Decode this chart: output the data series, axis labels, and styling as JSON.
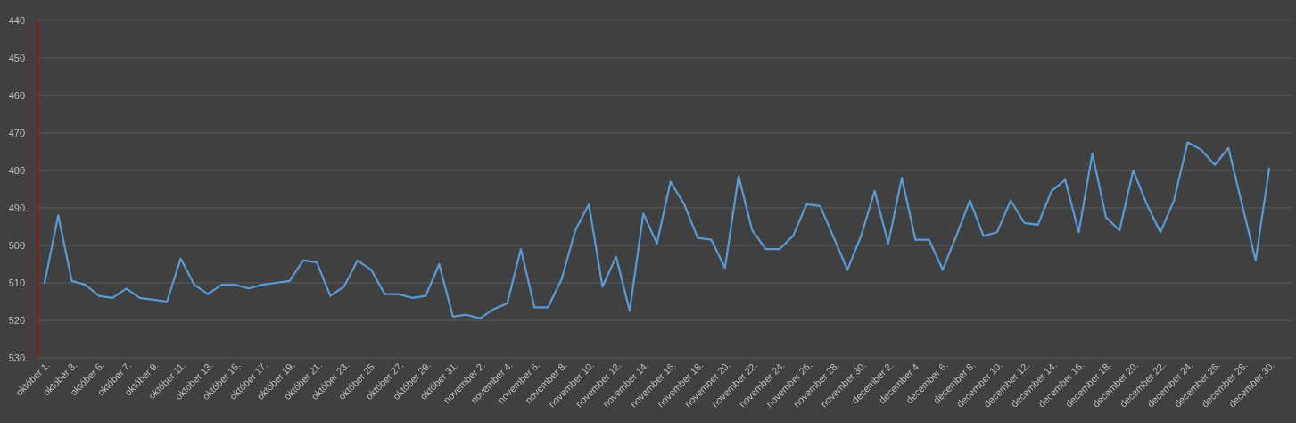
{
  "chart_data": {
    "type": "line",
    "categories": [
      "október 1.",
      null,
      "október 3.",
      null,
      "október 5.",
      null,
      "október 7.",
      null,
      "október 9.",
      null,
      "október 11.",
      null,
      "október 13.",
      null,
      "október 15.",
      null,
      "október 17.",
      null,
      "október 19.",
      null,
      "október 21.",
      null,
      "október 23.",
      null,
      "október 25.",
      null,
      "október 27.",
      null,
      "október 29.",
      null,
      "október 31.",
      null,
      "november 2.",
      null,
      "november 4.",
      null,
      "november 6.",
      null,
      "november 8.",
      null,
      "november 10.",
      null,
      "november 12.",
      null,
      "november 14.",
      null,
      "november 16.",
      null,
      "november 18.",
      null,
      "november 20.",
      null,
      "november 22.",
      null,
      "november 24.",
      null,
      "november 26.",
      null,
      "november 28.",
      null,
      "november 30.",
      null,
      "december 2.",
      null,
      "december 4.",
      null,
      "december 6.",
      null,
      "december 8.",
      null,
      "december 10.",
      null,
      "december 12.",
      null,
      "december 14.",
      null,
      "december 16.",
      null,
      "december 18.",
      null,
      "december 20.",
      null,
      "december 22.",
      null,
      "december 24.",
      null,
      "december 26.",
      null,
      "december 28.",
      null,
      "december 30."
    ],
    "series": [
      {
        "color": "#5b9bd5",
        "values": [
          510,
          492,
          509.5,
          510.5,
          513.5,
          514,
          511.5,
          514,
          514.5,
          515,
          503.5,
          510.5,
          513,
          510.5,
          510.5,
          511.5,
          510.5,
          510,
          509.5,
          504,
          504.5,
          513.5,
          511,
          504,
          506.5,
          513,
          513,
          514,
          513.5,
          505,
          519,
          518.5,
          519.5,
          517,
          515.5,
          501,
          516.5,
          516.5,
          509,
          496,
          489,
          511,
          503,
          517.5,
          491.5,
          499.5,
          483,
          489,
          498,
          498.5,
          506,
          481.5,
          496,
          501,
          501,
          497.5,
          489,
          489.5,
          498,
          506.5,
          497.5,
          485.5,
          499.5,
          482,
          498.5,
          498.5,
          506.5,
          497.5,
          488,
          497.5,
          496.5,
          488,
          494,
          494.5,
          485.5,
          482.5,
          496.5,
          475.5,
          492.5,
          496,
          480,
          489,
          496.5,
          488,
          472.5,
          474.5,
          478.5,
          474,
          489,
          504,
          479.5
        ]
      }
    ],
    "ylim": [
      530,
      440
    ],
    "yticks": [
      440,
      450,
      460,
      470,
      480,
      490,
      500,
      510,
      520,
      530
    ],
    "grid": "y"
  }
}
